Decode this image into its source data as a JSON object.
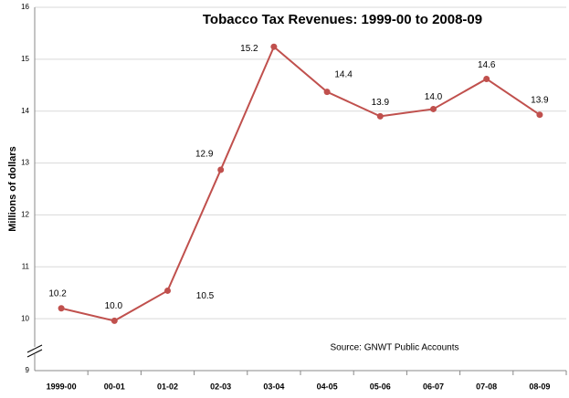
{
  "chart_data": {
    "type": "line",
    "title": "Tobacco Tax Revenues: 1999-00 to 2008-09",
    "y_label": "Millions of dollars",
    "annotation": "Source: GNWT Public Accounts",
    "categories": [
      "1999-00",
      "00-01",
      "01-02",
      "02-03",
      "03-04",
      "04-05",
      "05-06",
      "06-07",
      "07-08",
      "08-09"
    ],
    "series": [
      {
        "name": "Tobacco Tax Revenues",
        "color": "#c0504d",
        "values": [
          10.2,
          9.96,
          10.54,
          12.87,
          15.24,
          14.37,
          13.9,
          14.04,
          14.62,
          13.93
        ],
        "value_labels": [
          "10.2",
          "10.0",
          "10.5",
          "12.9",
          "15.2",
          "14.4",
          "13.9",
          "14.0",
          "14.6",
          "13.9"
        ]
      }
    ],
    "ylim": [
      9,
      16
    ],
    "yticks": [
      9,
      10,
      11,
      12,
      13,
      14,
      15,
      16
    ],
    "grid": true
  }
}
